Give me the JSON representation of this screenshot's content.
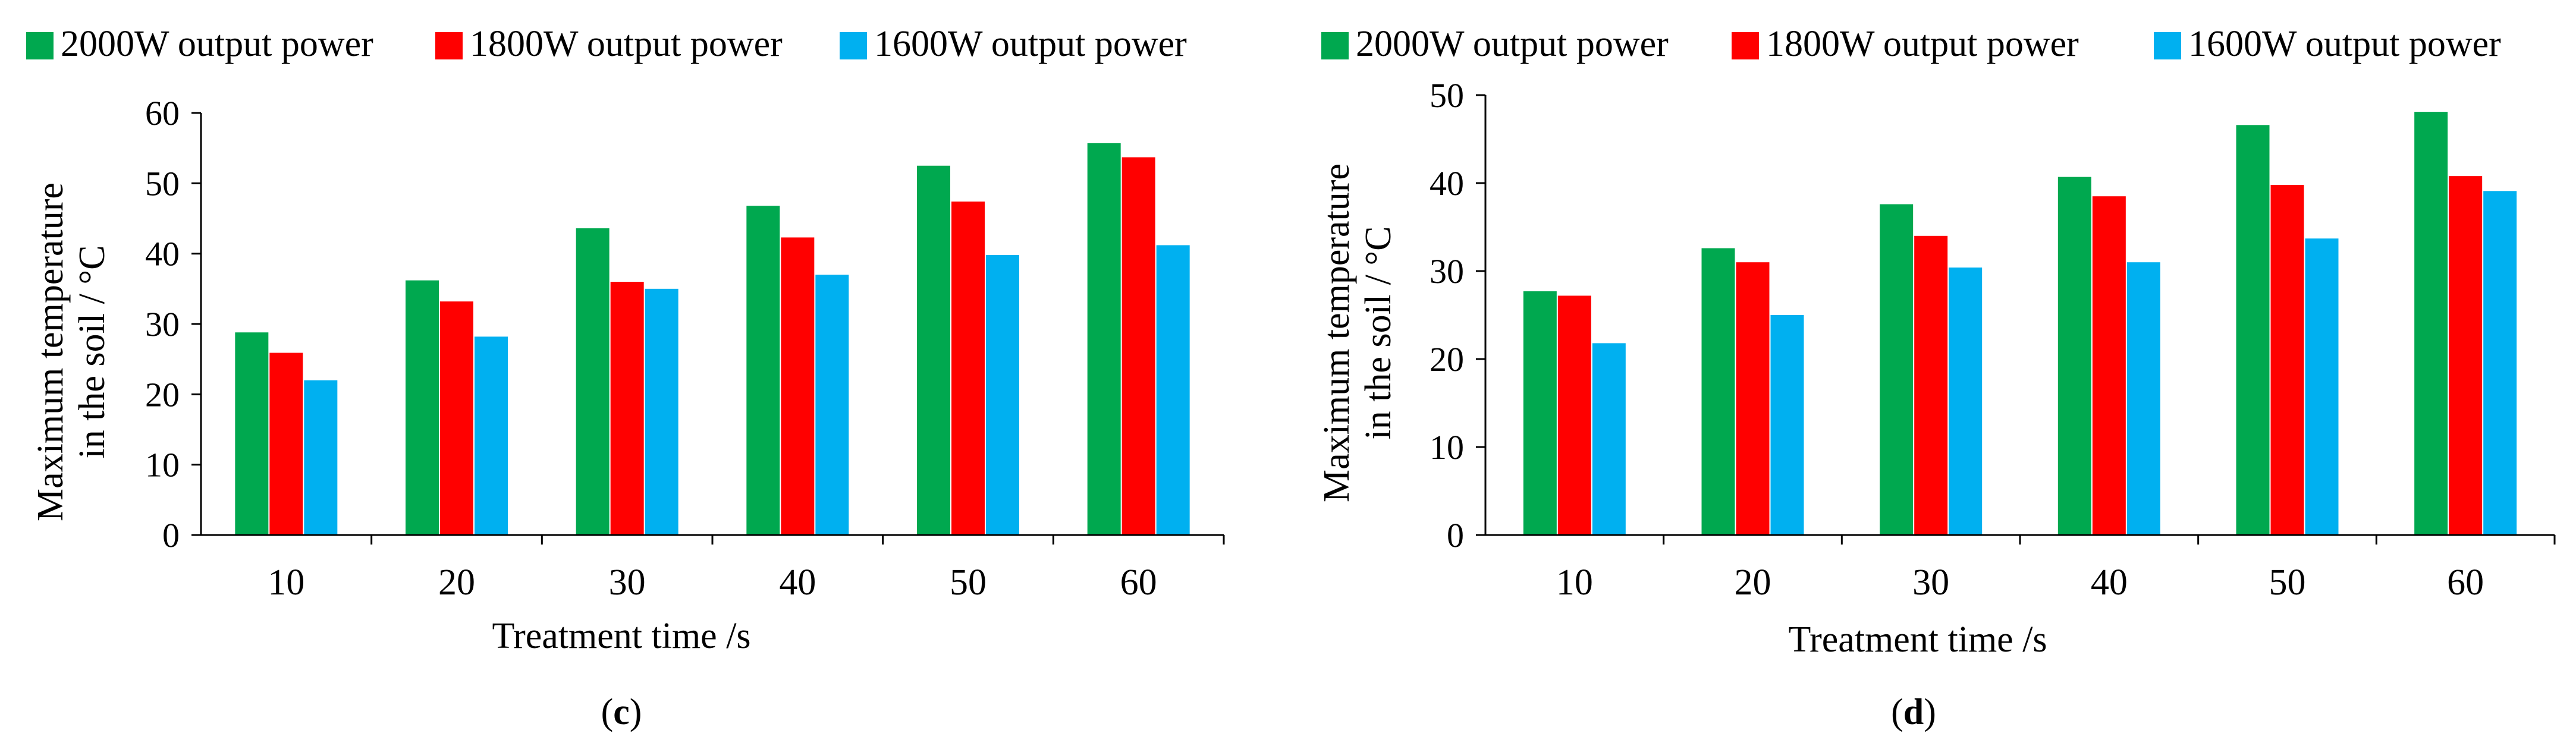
{
  "colors": {
    "series": [
      "#00a84f",
      "#ff0000",
      "#00b0f0"
    ],
    "axis": "#000000",
    "background": "#ffffff"
  },
  "chart_data": [
    {
      "type": "bar",
      "panel_label": "c",
      "categories": [
        "10",
        "20",
        "30",
        "40",
        "50",
        "60"
      ],
      "series": [
        {
          "name": "2000W output power",
          "values": [
            28.8,
            36.2,
            43.6,
            46.8,
            52.5,
            55.7
          ]
        },
        {
          "name": "1800W output power",
          "values": [
            25.9,
            33.2,
            36.0,
            42.3,
            47.4,
            53.7
          ]
        },
        {
          "name": "1600W output power",
          "values": [
            22.0,
            28.2,
            35.0,
            37.0,
            39.8,
            41.2
          ]
        }
      ],
      "xlabel": "Treatment time /s",
      "ylabel_lines": [
        "Maximum temperature",
        "in the soil / °C"
      ],
      "ylim": [
        0,
        60
      ],
      "yticks": [
        0,
        10,
        20,
        30,
        40,
        50,
        60
      ],
      "grid": false,
      "legend": "top"
    },
    {
      "type": "bar",
      "panel_label": "d",
      "categories": [
        "10",
        "20",
        "30",
        "40",
        "50",
        "60"
      ],
      "series": [
        {
          "name": "2000W output power",
          "values": [
            27.7,
            32.6,
            37.6,
            40.7,
            46.6,
            48.1
          ]
        },
        {
          "name": "1800W output power",
          "values": [
            27.2,
            31.0,
            34.0,
            38.5,
            39.8,
            40.8
          ]
        },
        {
          "name": "1600W output power",
          "values": [
            21.8,
            25.0,
            30.4,
            31.0,
            33.7,
            39.1
          ]
        }
      ],
      "xlabel": "Treatment time /s",
      "ylabel_lines": [
        "Maximum temperature",
        "in the soil / °C"
      ],
      "ylim": [
        0,
        50
      ],
      "yticks": [
        0,
        10,
        20,
        30,
        40,
        50
      ],
      "grid": false,
      "legend": "top"
    }
  ]
}
